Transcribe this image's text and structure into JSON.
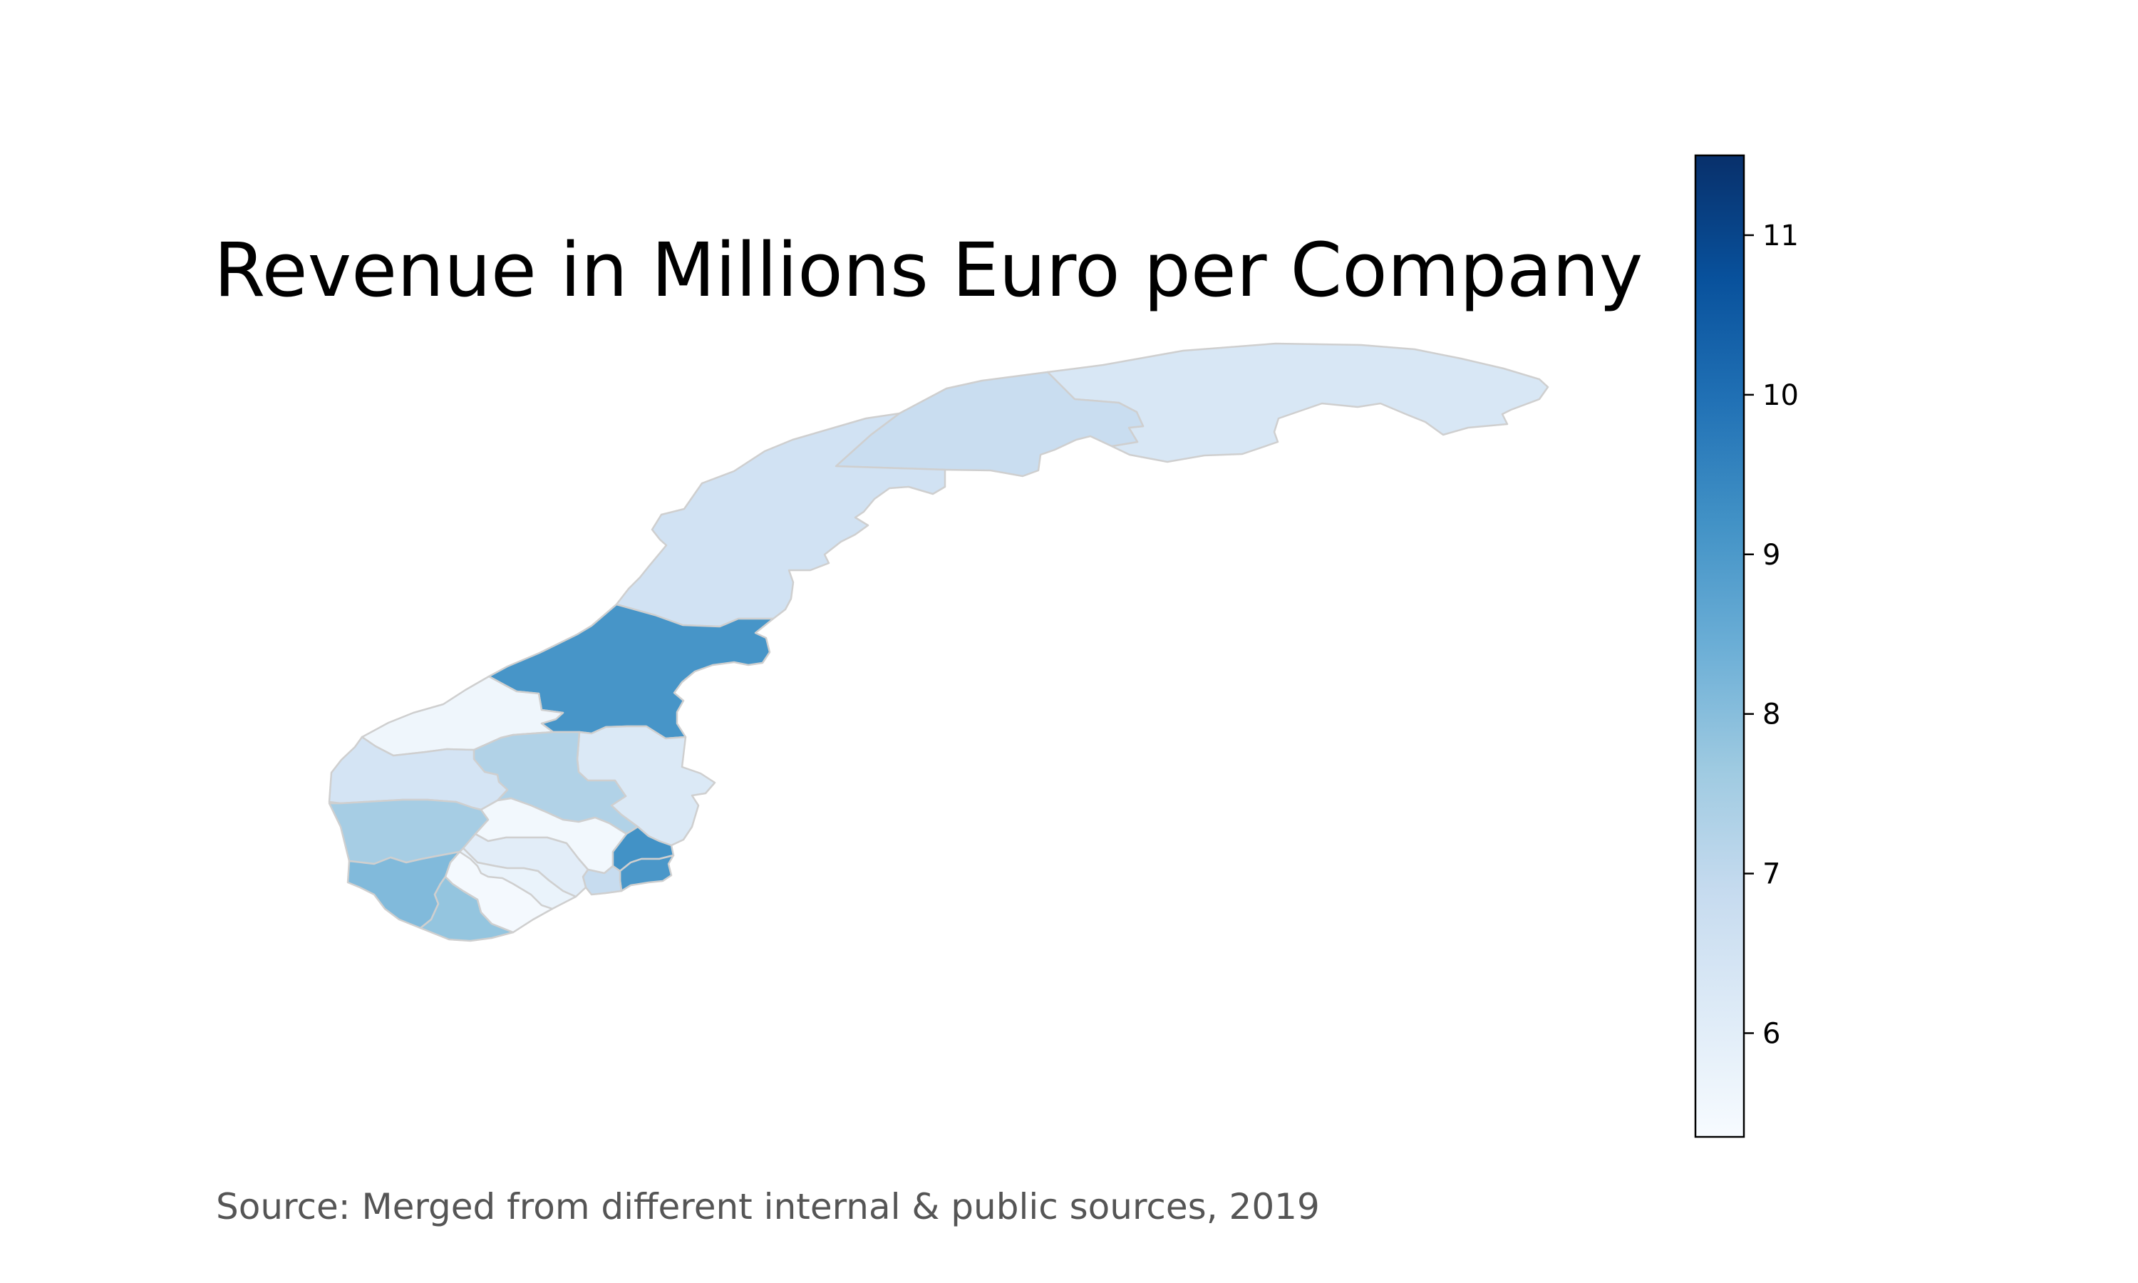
{
  "title": "Revenue in Millions Euro per Company",
  "source": "Source: Merged from different internal & public sources, 2019",
  "colorbar": {
    "min": 5.35,
    "max": 11.5,
    "ticks": [
      "6",
      "7",
      "8",
      "9",
      "10",
      "11"
    ],
    "tick_values": [
      6,
      7,
      8,
      9,
      10,
      11
    ],
    "colors": [
      "#f7fbff",
      "#deebf7",
      "#c6dbef",
      "#9ecae1",
      "#6baed6",
      "#4292c6",
      "#2171b5",
      "#08519c",
      "#08306b"
    ]
  },
  "chart_data": {
    "type": "choropleth",
    "title": "Revenue in Millions Euro per Company",
    "colorscale": "Blues",
    "range": [
      5.35,
      11.5
    ],
    "regions": [
      {
        "id": "finnmark",
        "value": 6.3
      },
      {
        "id": "troms",
        "value": 6.8
      },
      {
        "id": "nordland",
        "value": 6.55
      },
      {
        "id": "trondelag",
        "value": 9.1
      },
      {
        "id": "more-og-romsdal",
        "value": 5.6
      },
      {
        "id": "oppland",
        "value": 7.3
      },
      {
        "id": "hedmark",
        "value": 6.2
      },
      {
        "id": "sogn-og-fjordane",
        "value": 6.45
      },
      {
        "id": "hordaland",
        "value": 7.5
      },
      {
        "id": "buskerud",
        "value": 5.5
      },
      {
        "id": "akershus",
        "value": 9.2
      },
      {
        "id": "oslo",
        "value": 9.05
      },
      {
        "id": "ostfold",
        "value": 6.85
      },
      {
        "id": "vestfold",
        "value": 6.0
      },
      {
        "id": "telemark",
        "value": 5.75
      },
      {
        "id": "rogaland",
        "value": 8.1
      },
      {
        "id": "vest-agder",
        "value": 7.8
      },
      {
        "id": "aust-agder",
        "value": 5.45
      }
    ]
  }
}
